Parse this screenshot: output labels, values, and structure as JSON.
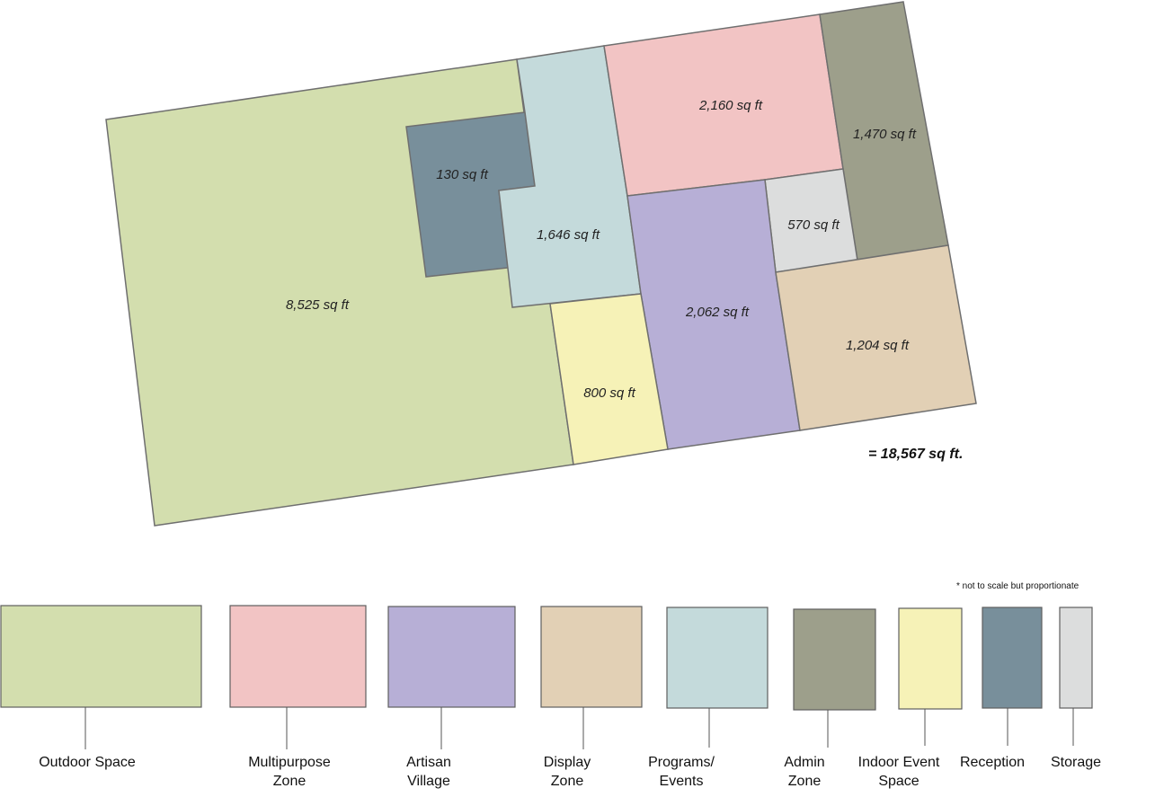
{
  "total_area": "= 18,567 sq ft.",
  "note": "* not to scale but proportionate",
  "zones": [
    {
      "id": "outdoor",
      "area": "8,525 sq ft",
      "color": "#d3deae"
    },
    {
      "id": "reception",
      "area": "130 sq ft",
      "color": "#788f9b"
    },
    {
      "id": "programs",
      "area": "1,646 sq ft",
      "color": "#c4dadb"
    },
    {
      "id": "multipurpose",
      "area": "2,160 sq ft",
      "color": "#f2c4c4"
    },
    {
      "id": "admin",
      "area": "1,470 sq ft",
      "color": "#9d9f8b"
    },
    {
      "id": "storage",
      "area": "570 sq ft",
      "color": "#dcdddd"
    },
    {
      "id": "artisan",
      "area": "2,062 sq ft",
      "color": "#b7afd6"
    },
    {
      "id": "display",
      "area": "1,204 sq ft",
      "color": "#e2d0b5"
    },
    {
      "id": "indoor_event",
      "area": "800 sq ft",
      "color": "#f6f2b7"
    }
  ],
  "legend": [
    {
      "lines": [
        "Outdoor Space"
      ],
      "color": "#d3deae"
    },
    {
      "lines": [
        "Multipurpose",
        "Zone"
      ],
      "color": "#f2c4c4"
    },
    {
      "lines": [
        "Artisan",
        "Village"
      ],
      "color": "#b7afd6"
    },
    {
      "lines": [
        "Display",
        "Zone"
      ],
      "color": "#e2d0b5"
    },
    {
      "lines": [
        "Programs/",
        "Events"
      ],
      "color": "#c4dadb"
    },
    {
      "lines": [
        "Admin",
        "Zone"
      ],
      "color": "#9d9f8b"
    },
    {
      "lines": [
        "Indoor Event",
        "Space"
      ],
      "color": "#f6f2b7"
    },
    {
      "lines": [
        "Reception"
      ],
      "color": "#788f9b"
    },
    {
      "lines": [
        "Storage"
      ],
      "color": "#dcdddd"
    }
  ]
}
